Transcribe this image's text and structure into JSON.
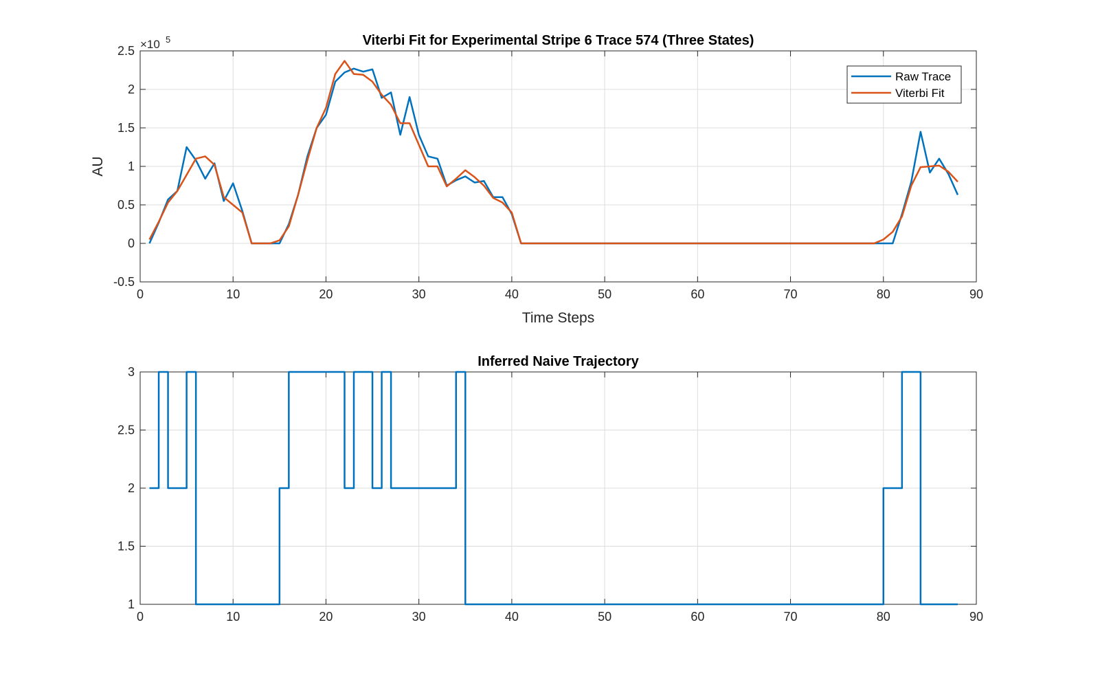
{
  "chart_data": [
    {
      "type": "line",
      "title": "Viterbi Fit for Experimental Stripe 6 Trace 574 (Three States)",
      "xlabel": "Time Steps",
      "ylabel": "AU",
      "y_exponent_label": "×10",
      "y_exponent_power": "5",
      "xlim": [
        0,
        90
      ],
      "ylim": [
        -0.5,
        2.5
      ],
      "xticks": [
        "0",
        "10",
        "20",
        "30",
        "40",
        "50",
        "60",
        "70",
        "80",
        "90"
      ],
      "yticks": [
        "-0.5",
        "0",
        "0.5",
        "1",
        "1.5",
        "2",
        "2.5"
      ],
      "grid": true,
      "legend_position": "top-right",
      "x": [
        1,
        2,
        3,
        4,
        5,
        6,
        7,
        8,
        9,
        10,
        11,
        12,
        13,
        14,
        15,
        16,
        17,
        18,
        19,
        20,
        21,
        22,
        23,
        24,
        25,
        26,
        27,
        28,
        29,
        30,
        31,
        32,
        33,
        34,
        35,
        36,
        37,
        38,
        39,
        40,
        41,
        42,
        43,
        44,
        45,
        46,
        47,
        48,
        49,
        50,
        51,
        52,
        53,
        54,
        55,
        56,
        57,
        58,
        59,
        60,
        61,
        62,
        63,
        64,
        65,
        66,
        67,
        68,
        69,
        70,
        71,
        72,
        73,
        74,
        75,
        76,
        77,
        78,
        79,
        80,
        81,
        82,
        83,
        84,
        85,
        86,
        87,
        88
      ],
      "series": [
        {
          "name": "Raw Trace",
          "color": "#0072BD",
          "values": [
            0.0,
            0.27,
            0.57,
            0.68,
            1.25,
            1.08,
            0.84,
            1.04,
            0.55,
            0.78,
            0.42,
            0.0,
            0.0,
            0.0,
            0.0,
            0.25,
            0.63,
            1.13,
            1.5,
            1.67,
            2.1,
            2.22,
            2.27,
            2.23,
            2.26,
            1.89,
            1.96,
            1.41,
            1.9,
            1.41,
            1.13,
            1.1,
            0.75,
            0.82,
            0.87,
            0.79,
            0.81,
            0.6,
            0.6,
            0.38,
            0.0,
            0.0,
            0.0,
            0.0,
            0.0,
            0.0,
            0.0,
            0.0,
            0.0,
            0.0,
            0.0,
            0.0,
            0.0,
            0.0,
            0.0,
            0.0,
            0.0,
            0.0,
            0.0,
            0.0,
            0.0,
            0.0,
            0.0,
            0.0,
            0.0,
            0.0,
            0.0,
            0.0,
            0.0,
            0.0,
            0.0,
            0.0,
            0.0,
            0.0,
            0.0,
            0.0,
            0.0,
            0.0,
            0.0,
            0.0,
            0.0,
            0.38,
            0.8,
            1.45,
            0.92,
            1.1,
            0.9,
            0.63
          ]
        },
        {
          "name": "Viterbi Fit",
          "color": "#D95319",
          "values": [
            0.05,
            0.28,
            0.53,
            0.68,
            0.89,
            1.1,
            1.13,
            1.02,
            0.6,
            0.5,
            0.4,
            0.0,
            0.0,
            0.0,
            0.04,
            0.22,
            0.63,
            1.08,
            1.5,
            1.76,
            2.2,
            2.37,
            2.2,
            2.19,
            2.1,
            1.93,
            1.8,
            1.56,
            1.56,
            1.28,
            1.0,
            1.0,
            0.74,
            0.84,
            0.95,
            0.86,
            0.75,
            0.59,
            0.53,
            0.4,
            0.0,
            0.0,
            0.0,
            0.0,
            0.0,
            0.0,
            0.0,
            0.0,
            0.0,
            0.0,
            0.0,
            0.0,
            0.0,
            0.0,
            0.0,
            0.0,
            0.0,
            0.0,
            0.0,
            0.0,
            0.0,
            0.0,
            0.0,
            0.0,
            0.0,
            0.0,
            0.0,
            0.0,
            0.0,
            0.0,
            0.0,
            0.0,
            0.0,
            0.0,
            0.0,
            0.0,
            0.0,
            0.0,
            0.0,
            0.05,
            0.15,
            0.35,
            0.75,
            0.99,
            1.0,
            1.01,
            0.93,
            0.8
          ]
        }
      ]
    },
    {
      "type": "line",
      "step": true,
      "title": "Inferred Naive Trajectory",
      "xlabel": "",
      "ylabel": "",
      "xlim": [
        0,
        90
      ],
      "ylim": [
        1,
        3
      ],
      "xticks": [
        "0",
        "10",
        "20",
        "30",
        "40",
        "50",
        "60",
        "70",
        "80",
        "90"
      ],
      "yticks": [
        "1",
        "1.5",
        "2",
        "2.5",
        "3"
      ],
      "grid": true,
      "x": [
        1,
        2,
        3,
        4,
        5,
        6,
        7,
        8,
        9,
        10,
        11,
        12,
        13,
        14,
        15,
        16,
        17,
        18,
        19,
        20,
        21,
        22,
        23,
        24,
        25,
        26,
        27,
        28,
        29,
        30,
        31,
        32,
        33,
        34,
        35,
        36,
        37,
        38,
        39,
        40,
        41,
        42,
        43,
        44,
        45,
        46,
        47,
        48,
        49,
        50,
        51,
        52,
        53,
        54,
        55,
        56,
        57,
        58,
        59,
        60,
        61,
        62,
        63,
        64,
        65,
        66,
        67,
        68,
        69,
        70,
        71,
        72,
        73,
        74,
        75,
        76,
        77,
        78,
        79,
        80,
        81,
        82,
        83,
        84,
        85,
        86,
        87,
        88
      ],
      "series": [
        {
          "color": "#0072BD",
          "values": [
            2,
            3,
            2,
            2,
            3,
            1,
            1,
            1,
            1,
            1,
            1,
            1,
            1,
            1,
            2,
            3,
            3,
            3,
            3,
            3,
            3,
            2,
            3,
            3,
            2,
            3,
            2,
            2,
            2,
            2,
            2,
            2,
            2,
            3,
            1,
            1,
            1,
            1,
            1,
            1,
            1,
            1,
            1,
            1,
            1,
            1,
            1,
            1,
            1,
            1,
            1,
            1,
            1,
            1,
            1,
            1,
            1,
            1,
            1,
            1,
            1,
            1,
            1,
            1,
            1,
            1,
            1,
            1,
            1,
            1,
            1,
            1,
            1,
            1,
            1,
            1,
            1,
            1,
            1,
            2,
            2,
            3,
            3,
            1,
            1,
            1,
            1,
            1
          ]
        }
      ]
    }
  ]
}
